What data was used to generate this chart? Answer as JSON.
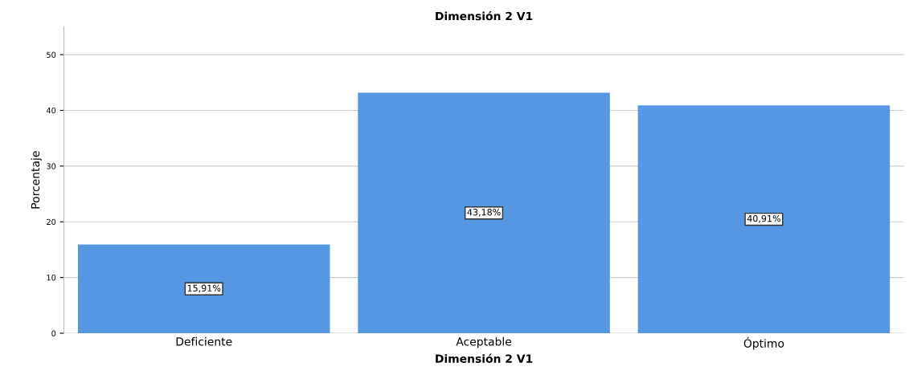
{
  "chart_data": {
    "type": "bar",
    "title": "Dimensión 2 V1",
    "xlabel": "Dimensión 2 V1",
    "ylabel": "Porcentaje",
    "categories": [
      "Deficiente",
      "Aceptable",
      "Óptimo"
    ],
    "values": [
      15.91,
      43.18,
      40.91
    ],
    "color": "#5597e3",
    "value_labels": [
      "15,91%",
      "43,18%",
      "40,91%"
    ],
    "ylim": [
      0,
      55
    ],
    "yticks": [
      0,
      10,
      20,
      30,
      40,
      50
    ],
    "grid": "y"
  }
}
